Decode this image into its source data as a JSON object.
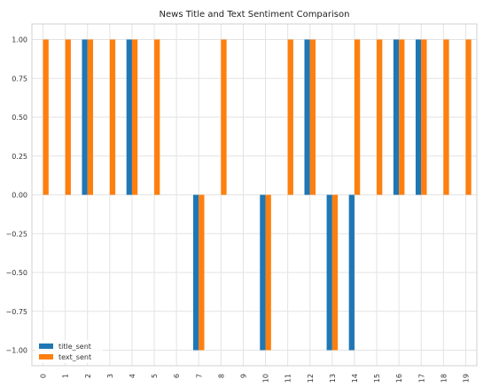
{
  "chart_data": {
    "type": "bar",
    "title": "News Title and Text Sentiment Comparison",
    "xlabel": "",
    "ylabel": "",
    "categories": [
      "0",
      "1",
      "2",
      "3",
      "4",
      "5",
      "6",
      "7",
      "8",
      "9",
      "10",
      "11",
      "12",
      "13",
      "14",
      "15",
      "16",
      "17",
      "18",
      "19"
    ],
    "series": [
      {
        "name": "title_sent",
        "color": "#1f77b4",
        "values": [
          0,
          0,
          1,
          0,
          1,
          0,
          0,
          -1,
          0,
          0,
          -1,
          0,
          1,
          -1,
          -1,
          0,
          1,
          1,
          0,
          0
        ]
      },
      {
        "name": "text_sent",
        "color": "#ff7f0e",
        "values": [
          1,
          1,
          1,
          1,
          1,
          1,
          0,
          -1,
          1,
          0,
          -1,
          1,
          1,
          -1,
          1,
          1,
          1,
          1,
          1,
          1
        ]
      }
    ],
    "yticks": [
      "1.00",
      "0.75",
      "0.50",
      "0.25",
      "0.00",
      "−0.25",
      "−0.50",
      "−0.75",
      "−1.00"
    ],
    "ylim": [
      -1.1,
      1.1
    ],
    "grid": true,
    "legend_position": "lower-left"
  }
}
